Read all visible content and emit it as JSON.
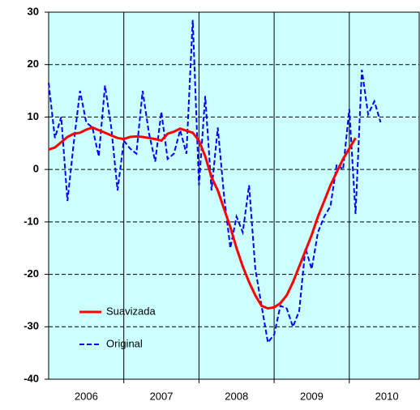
{
  "chart_data": {
    "type": "line",
    "x": [
      2006.0,
      2006.083,
      2006.167,
      2006.25,
      2006.333,
      2006.417,
      2006.5,
      2006.583,
      2006.667,
      2006.75,
      2006.833,
      2006.917,
      2007.0,
      2007.083,
      2007.167,
      2007.25,
      2007.333,
      2007.417,
      2007.5,
      2007.583,
      2007.667,
      2007.75,
      2007.833,
      2007.917,
      2008.0,
      2008.083,
      2008.167,
      2008.25,
      2008.333,
      2008.417,
      2008.5,
      2008.583,
      2008.667,
      2008.75,
      2008.833,
      2008.917,
      2009.0,
      2009.083,
      2009.167,
      2009.25,
      2009.333,
      2009.417,
      2009.5,
      2009.583,
      2009.667,
      2009.75,
      2009.833,
      2009.917,
      2010.0,
      2010.083,
      2010.167,
      2010.25,
      2010.333,
      2010.417
    ],
    "series": [
      {
        "name": "Suavizada",
        "color": "#ff0000",
        "dash": false,
        "values": [
          3.8,
          4.2,
          5.2,
          6.2,
          6.8,
          7.0,
          7.6,
          8.0,
          7.5,
          7.0,
          6.5,
          6.0,
          5.8,
          6.2,
          6.3,
          6.2,
          6.0,
          5.8,
          5.5,
          6.8,
          7.2,
          7.8,
          7.4,
          7.0,
          5.5,
          2.5,
          -1.5,
          -4,
          -7.5,
          -11,
          -15,
          -18.5,
          -21.5,
          -24,
          -26,
          -26.5,
          -26.3,
          -25.5,
          -24,
          -21.5,
          -18.5,
          -15.5,
          -12.5,
          -9,
          -6,
          -3,
          -0.5,
          2,
          4,
          6,
          null,
          null,
          null,
          null
        ]
      },
      {
        "name": "Original",
        "color": "#0000ff",
        "dash": true,
        "values": [
          16.5,
          6,
          10,
          -6,
          5,
          15,
          9,
          8,
          2.5,
          16,
          8,
          -4,
          5.5,
          4,
          3,
          15,
          7,
          1.5,
          11,
          2,
          3,
          7.5,
          3,
          28.5,
          -3,
          14,
          -4,
          8,
          -5,
          -15,
          -9,
          -12,
          -3,
          -19,
          -26,
          -33,
          -31.5,
          -26,
          -26.5,
          -30,
          -27,
          -15,
          -19,
          -12,
          -9,
          -7,
          1,
          0,
          11.5,
          -8.5,
          19,
          10.5,
          13,
          9
        ]
      }
    ],
    "xlim": [
      2006,
      2010.93
    ],
    "xticks": [
      {
        "value": 2006.5,
        "label": "2006"
      },
      {
        "value": 2007.5,
        "label": "2007"
      },
      {
        "value": 2008.5,
        "label": "2008"
      },
      {
        "value": 2009.5,
        "label": "2009"
      },
      {
        "value": 2010.5,
        "label": "2010"
      }
    ],
    "xgrid": [
      2007,
      2008,
      2009,
      2010
    ],
    "ylim": [
      -40,
      30
    ],
    "yticks": [
      -40,
      -30,
      -20,
      -10,
      0,
      10,
      20,
      30
    ],
    "grid": true,
    "legend": "lower-left",
    "background": "#ccffff"
  }
}
